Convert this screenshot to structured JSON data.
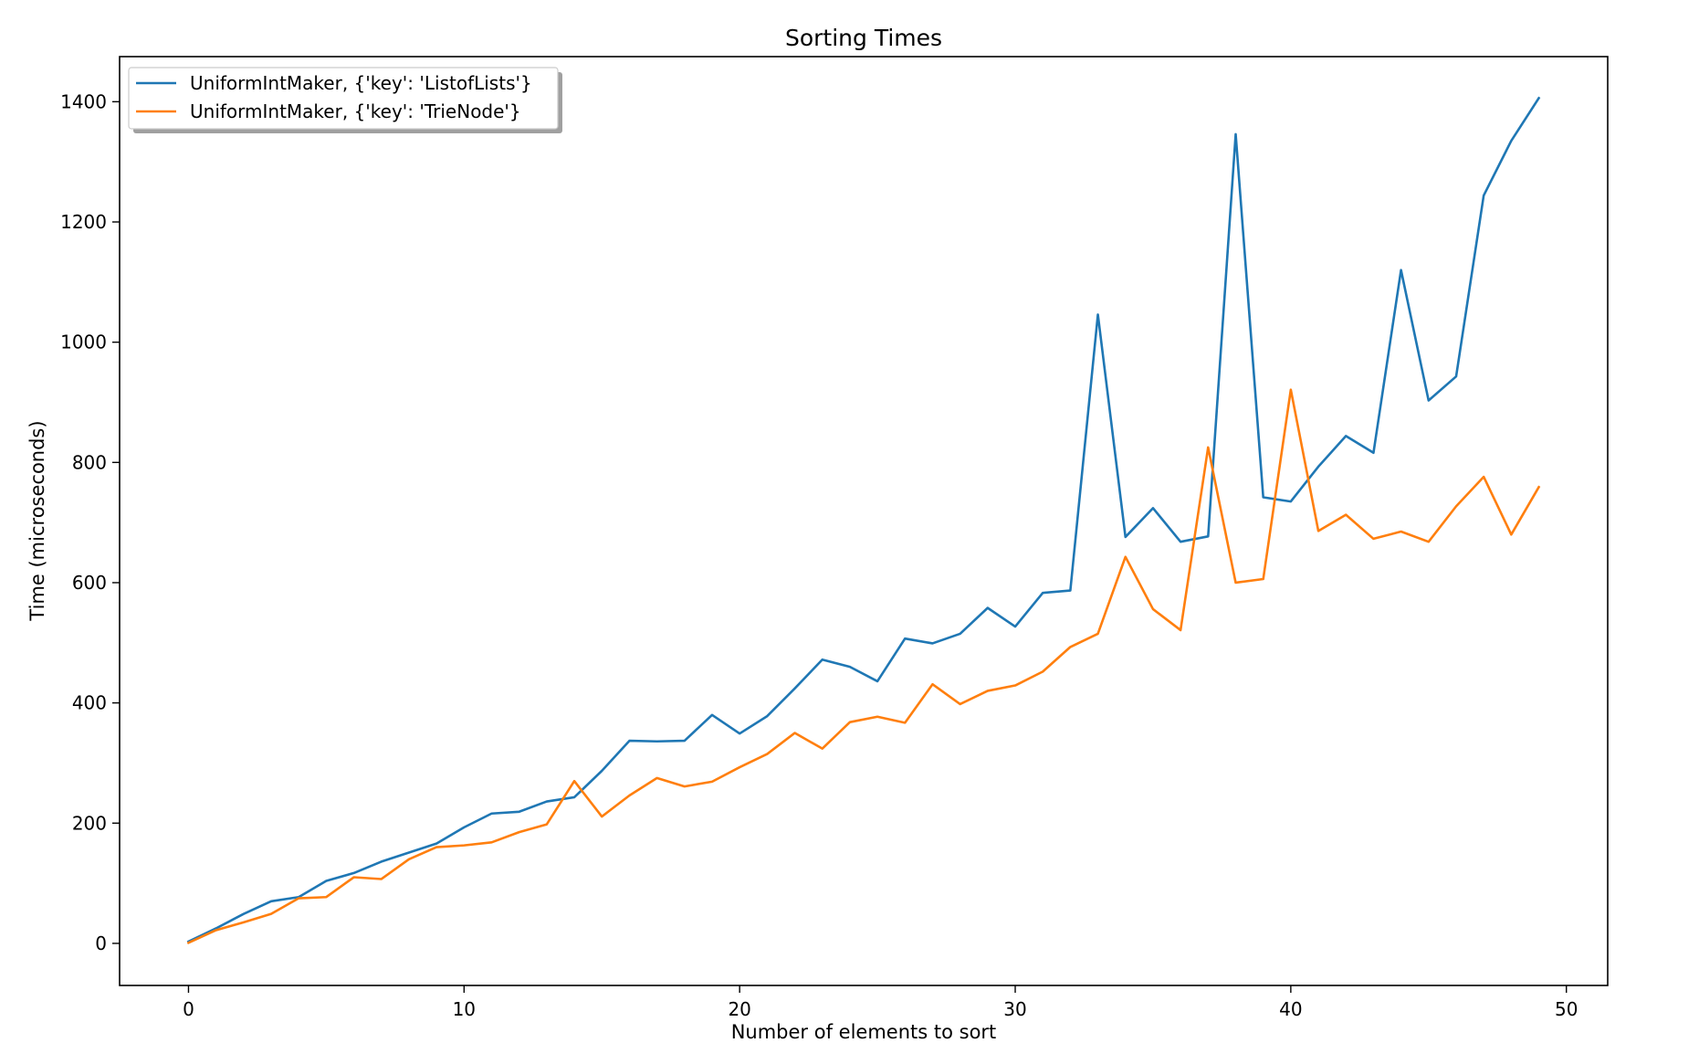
{
  "chart_data": {
    "type": "line",
    "title": "Sorting Times",
    "xlabel": "Number of elements to sort",
    "ylabel": "Time (microseconds)",
    "xlim": [
      -2.5,
      51.5
    ],
    "ylim": [
      -70,
      1475
    ],
    "xticks": [
      0,
      10,
      20,
      30,
      40,
      50
    ],
    "yticks": [
      0,
      200,
      400,
      600,
      800,
      1000,
      1200,
      1400
    ],
    "grid": false,
    "legend_position": "top-left",
    "x": [
      0,
      1,
      2,
      3,
      4,
      5,
      6,
      7,
      8,
      9,
      10,
      11,
      12,
      13,
      14,
      15,
      16,
      17,
      18,
      19,
      20,
      21,
      22,
      23,
      24,
      25,
      26,
      27,
      28,
      29,
      30,
      31,
      32,
      33,
      34,
      35,
      36,
      37,
      38,
      39,
      40,
      41,
      42,
      43,
      44,
      45,
      46,
      47,
      48,
      49
    ],
    "series": [
      {
        "name": "UniformIntMaker, {'key': 'ListofLists'}",
        "color": "#1f77b4",
        "values": [
          3,
          25,
          49,
          70,
          77,
          104,
          117,
          136,
          151,
          166,
          193,
          216,
          219,
          236,
          243,
          287,
          337,
          336,
          337,
          380,
          349,
          378,
          424,
          472,
          460,
          436,
          507,
          499,
          515,
          558,
          527,
          583,
          587,
          1046,
          676,
          724,
          668,
          677,
          1346,
          742,
          735,
          793,
          844,
          816,
          1120,
          903,
          943,
          1244,
          1335,
          1406
        ]
      },
      {
        "name": "UniformIntMaker, {'key': 'TrieNode'}",
        "color": "#ff7f0e",
        "values": [
          1,
          22,
          35,
          49,
          75,
          77,
          110,
          107,
          140,
          160,
          163,
          168,
          185,
          198,
          270,
          211,
          246,
          275,
          261,
          269,
          293,
          315,
          350,
          324,
          368,
          377,
          367,
          431,
          398,
          420,
          429,
          452,
          493,
          515,
          643,
          556,
          521,
          825,
          600,
          606,
          921,
          686,
          713,
          673,
          685,
          668,
          727,
          776,
          680,
          759
        ]
      }
    ]
  }
}
